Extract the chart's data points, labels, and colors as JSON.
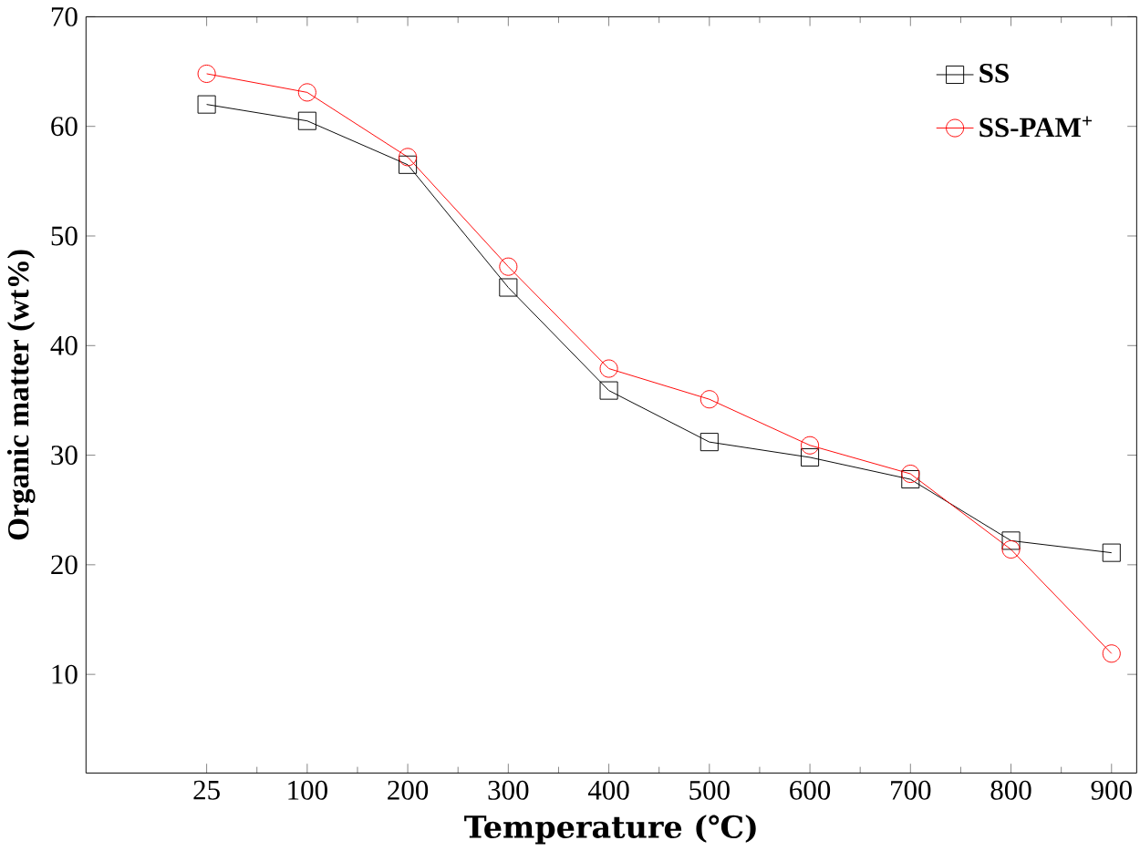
{
  "chart_data": {
    "type": "line",
    "xlabel": "Temperature (℃)",
    "ylabel": "Organic matter (wt%)",
    "categories": [
      "25",
      "100",
      "200",
      "300",
      "400",
      "500",
      "600",
      "700",
      "800",
      "900"
    ],
    "ylim": [
      1,
      70
    ],
    "yticks": [
      10,
      20,
      30,
      40,
      50,
      60,
      70
    ],
    "legend": "top right",
    "grid": false,
    "series": [
      {
        "name": "SS",
        "color": "#000000",
        "marker": "square",
        "values": [
          62.0,
          60.5,
          56.5,
          45.3,
          35.9,
          31.2,
          29.8,
          27.8,
          22.2,
          21.1
        ]
      },
      {
        "name": "SS-PAM$^{+}$",
        "color": "#ff0000",
        "marker": "circle",
        "values": [
          64.8,
          63.1,
          57.2,
          47.2,
          37.9,
          35.1,
          30.9,
          28.3,
          21.4,
          11.9
        ]
      }
    ]
  }
}
